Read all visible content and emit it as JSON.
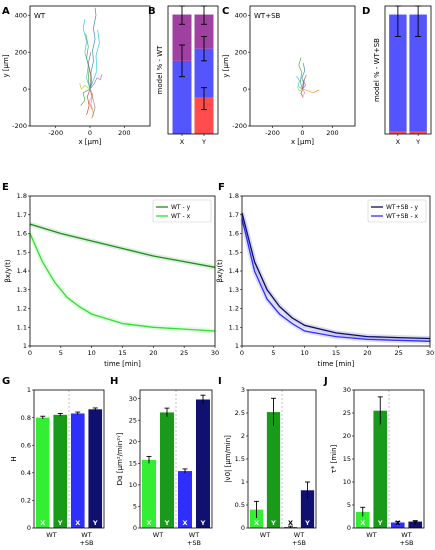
{
  "panels": [
    {
      "letter": "A"
    },
    {
      "letter": "B"
    },
    {
      "letter": "C"
    },
    {
      "letter": "D"
    },
    {
      "letter": "E"
    },
    {
      "letter": "F"
    },
    {
      "letter": "G"
    },
    {
      "letter": "H"
    },
    {
      "letter": "I"
    },
    {
      "letter": "J"
    }
  ],
  "chart_data": [
    {
      "id": "A",
      "type": "scatter",
      "title": "",
      "inset_label": "WT",
      "xlabel": "x [μm]",
      "ylabel": "y [μm]",
      "xlim": [
        -350,
        350
      ],
      "ylim": [
        -200,
        450
      ],
      "xticks": [
        -200,
        0,
        200
      ],
      "yticks": [
        -200,
        0,
        200,
        400
      ],
      "trajectories": [
        {
          "color": "#1f77b4",
          "points": [
            [
              0,
              0
            ],
            [
              10,
              40
            ],
            [
              5,
              90
            ],
            [
              20,
              150
            ],
            [
              15,
              210
            ],
            [
              30,
              270
            ],
            [
              20,
              330
            ],
            [
              35,
              400
            ],
            [
              30,
              440
            ]
          ]
        },
        {
          "color": "#2ca02c",
          "points": [
            [
              0,
              0
            ],
            [
              -10,
              50
            ],
            [
              -5,
              110
            ],
            [
              -20,
              170
            ],
            [
              -10,
              230
            ],
            [
              -25,
              300
            ]
          ]
        },
        {
          "color": "#ff7f0e",
          "points": [
            [
              0,
              0
            ],
            [
              15,
              -30
            ],
            [
              5,
              -80
            ],
            [
              20,
              -130
            ],
            [
              10,
              -160
            ]
          ]
        },
        {
          "color": "#d62728",
          "points": [
            [
              0,
              0
            ],
            [
              -15,
              -40
            ],
            [
              -5,
              -90
            ],
            [
              -20,
              -140
            ]
          ]
        },
        {
          "color": "#9467bd",
          "points": [
            [
              0,
              0
            ],
            [
              25,
              30
            ],
            [
              40,
              60
            ],
            [
              60,
              50
            ],
            [
              70,
              80
            ]
          ]
        },
        {
          "color": "#17becf",
          "points": [
            [
              0,
              0
            ],
            [
              -20,
              60
            ],
            [
              -10,
              130
            ],
            [
              -30,
              200
            ],
            [
              -20,
              260
            ],
            [
              -40,
              330
            ],
            [
              -30,
              380
            ]
          ]
        },
        {
          "color": "#e377c2",
          "points": [
            [
              0,
              0
            ],
            [
              10,
              -40
            ],
            [
              -5,
              -70
            ],
            [
              10,
              -110
            ]
          ]
        },
        {
          "color": "#bcbd22",
          "points": [
            [
              0,
              0
            ],
            [
              -30,
              20
            ],
            [
              -50,
              0
            ],
            [
              -60,
              30
            ]
          ]
        },
        {
          "color": "#8c564b",
          "points": [
            [
              0,
              0
            ],
            [
              5,
              70
            ],
            [
              -10,
              140
            ],
            [
              5,
              200
            ]
          ]
        },
        {
          "color": "#7f7f7f",
          "points": [
            [
              0,
              0
            ],
            [
              20,
              -60
            ],
            [
              30,
              -100
            ],
            [
              15,
              -150
            ]
          ]
        },
        {
          "color": "#17becf",
          "points": [
            [
              0,
              0
            ],
            [
              40,
              100
            ],
            [
              35,
              180
            ],
            [
              55,
              250
            ],
            [
              45,
              320
            ]
          ]
        },
        {
          "color": "#2ca02c",
          "points": [
            [
              0,
              0
            ],
            [
              -40,
              -20
            ],
            [
              -30,
              -60
            ],
            [
              -55,
              -90
            ]
          ]
        }
      ]
    },
    {
      "id": "B",
      "type": "bar",
      "title": "",
      "ylabel": "model % - WT",
      "categories": [
        "X",
        "Y"
      ],
      "ylim": [
        0,
        1.05
      ],
      "yticks": [],
      "series": [
        {
          "color": "#ff4d4d",
          "values": [
            0,
            0.3
          ]
        },
        {
          "color": "#5555ff",
          "values": [
            0.6,
            0.4
          ]
        },
        {
          "color": "#a040a0",
          "values": [
            0.38,
            0.28
          ]
        }
      ],
      "errorbars": [
        {
          "x": 0,
          "y": 0.6,
          "lo": 0.47,
          "hi": 0.73
        },
        {
          "x": 0,
          "y": 0.98,
          "lo": 0.9,
          "hi": 1.06
        },
        {
          "x": 1,
          "y": 0.3,
          "lo": 0.2,
          "hi": 0.38
        },
        {
          "x": 1,
          "y": 0.7,
          "lo": 0.6,
          "hi": 0.8
        },
        {
          "x": 1,
          "y": 0.98,
          "lo": 0.9,
          "hi": 1.06
        }
      ]
    },
    {
      "id": "C",
      "type": "scatter",
      "title": "",
      "inset_label": "WT+SB",
      "xlabel": "x [μm]",
      "ylabel": "y [μm]",
      "xlim": [
        -350,
        350
      ],
      "ylim": [
        -200,
        450
      ],
      "xticks": [
        -200,
        0,
        200
      ],
      "yticks": [
        -200,
        0,
        200,
        400
      ],
      "trajectories": [
        {
          "color": "#1f77b4",
          "points": [
            [
              0,
              0
            ],
            [
              10,
              30
            ],
            [
              -5,
              60
            ],
            [
              15,
              100
            ],
            [
              5,
              140
            ]
          ]
        },
        {
          "color": "#2ca02c",
          "points": [
            [
              0,
              0
            ],
            [
              -15,
              40
            ],
            [
              -5,
              90
            ],
            [
              -25,
              130
            ],
            [
              -10,
              170
            ]
          ]
        },
        {
          "color": "#ff7f0e",
          "points": [
            [
              0,
              0
            ],
            [
              40,
              -10
            ],
            [
              70,
              -20
            ],
            [
              110,
              -5
            ]
          ]
        },
        {
          "color": "#d62728",
          "points": [
            [
              0,
              0
            ],
            [
              -10,
              -25
            ],
            [
              5,
              -45
            ]
          ]
        },
        {
          "color": "#9467bd",
          "points": [
            [
              0,
              0
            ],
            [
              20,
              20
            ],
            [
              10,
              50
            ]
          ]
        },
        {
          "color": "#17becf",
          "points": [
            [
              0,
              0
            ],
            [
              -30,
              15
            ],
            [
              -20,
              45
            ],
            [
              -40,
              70
            ]
          ]
        },
        {
          "color": "#e377c2",
          "points": [
            [
              0,
              0
            ],
            [
              15,
              -20
            ],
            [
              0,
              -40
            ]
          ]
        },
        {
          "color": "#bcbd22",
          "points": [
            [
              0,
              0
            ],
            [
              -20,
              -10
            ],
            [
              -35,
              10
            ]
          ]
        },
        {
          "color": "#8c564b",
          "points": [
            [
              0,
              0
            ],
            [
              5,
              40
            ],
            [
              25,
              75
            ]
          ]
        }
      ]
    },
    {
      "id": "D",
      "type": "bar",
      "title": "",
      "ylabel": "model % - WT+SB",
      "categories": [
        "X",
        "Y"
      ],
      "ylim": [
        0,
        1.05
      ],
      "yticks": [],
      "series": [
        {
          "color": "#ff4d4d",
          "values": [
            0.02,
            0.02
          ]
        },
        {
          "color": "#5555ff",
          "values": [
            0.96,
            0.96
          ]
        }
      ],
      "errorbars": [
        {
          "x": 0,
          "y": 0.98,
          "lo": 0.8,
          "hi": 1.1
        },
        {
          "x": 1,
          "y": 0.98,
          "lo": 0.8,
          "hi": 1.1
        }
      ]
    },
    {
      "id": "E",
      "type": "line",
      "title": "",
      "xlabel": "time [min]",
      "ylabel": "βx/y(t)",
      "xlim": [
        0,
        30
      ],
      "ylim": [
        1.0,
        1.8
      ],
      "xticks": [
        0,
        5,
        10,
        15,
        20,
        25,
        30
      ],
      "yticks": [
        1.0,
        1.1,
        1.2,
        1.3,
        1.4,
        1.5,
        1.6,
        1.7,
        1.8
      ],
      "legend_position": "top-right",
      "series": [
        {
          "name": "WT - y",
          "color": "#1e8c1e",
          "x": [
            0,
            5,
            10,
            15,
            20,
            25,
            30
          ],
          "y": [
            1.65,
            1.6,
            1.56,
            1.52,
            1.48,
            1.45,
            1.42
          ]
        },
        {
          "name": "WT - x",
          "color": "#33dd33",
          "x": [
            0,
            2,
            4,
            6,
            8,
            10,
            15,
            20,
            25,
            30
          ],
          "y": [
            1.6,
            1.45,
            1.34,
            1.26,
            1.21,
            1.17,
            1.12,
            1.1,
            1.09,
            1.08
          ]
        }
      ]
    },
    {
      "id": "F",
      "type": "line",
      "title": "",
      "xlabel": "time [min]",
      "ylabel": "βx/y(t)",
      "xlim": [
        0,
        30
      ],
      "ylim": [
        1.0,
        1.8
      ],
      "xticks": [
        0,
        5,
        10,
        15,
        20,
        25,
        30
      ],
      "yticks": [
        1.0,
        1.1,
        1.2,
        1.3,
        1.4,
        1.5,
        1.6,
        1.7,
        1.8
      ],
      "legend_position": "top-right",
      "series": [
        {
          "name": "WT+SB - y",
          "color": "#0a0a66",
          "x": [
            0,
            2,
            4,
            6,
            8,
            10,
            15,
            20,
            25,
            30
          ],
          "y": [
            1.71,
            1.45,
            1.3,
            1.21,
            1.15,
            1.11,
            1.07,
            1.05,
            1.045,
            1.04
          ]
        },
        {
          "name": "WT+SB - x",
          "color": "#2e2eff",
          "x": [
            0,
            2,
            4,
            6,
            8,
            10,
            15,
            20,
            25,
            30
          ],
          "y": [
            1.68,
            1.4,
            1.25,
            1.17,
            1.12,
            1.08,
            1.05,
            1.035,
            1.03,
            1.025
          ]
        }
      ]
    },
    {
      "id": "G",
      "type": "bar",
      "ylabel": "H",
      "ylim": [
        0,
        1.0
      ],
      "yticks": [
        0.0,
        0.2,
        0.4,
        0.6,
        0.8,
        1.0
      ],
      "group_labels": [
        "WT",
        "WT\n+SB"
      ],
      "bar_labels": [
        "X",
        "Y",
        "X",
        "Y"
      ],
      "colors": [
        "#33ee33",
        "#1a9a1a",
        "#2e2eff",
        "#101070"
      ],
      "values": [
        0.8,
        0.82,
        0.83,
        0.86
      ],
      "errors": [
        0.01,
        0.01,
        0.01,
        0.01
      ]
    },
    {
      "id": "H",
      "type": "bar",
      "ylabel": "Dα [μm²/min²ᵞ]",
      "ylim": [
        0,
        32
      ],
      "yticks": [
        0,
        5,
        10,
        15,
        20,
        25,
        30
      ],
      "group_labels": [
        "WT",
        "WT\n+SB"
      ],
      "bar_labels": [
        "X",
        "Y",
        "X",
        "Y"
      ],
      "colors": [
        "#33ee33",
        "#1a9a1a",
        "#2e2eff",
        "#101070"
      ],
      "values": [
        15.8,
        26.8,
        13.2,
        29.8
      ],
      "errors": [
        0.8,
        1.0,
        0.5,
        1.0
      ]
    },
    {
      "id": "I",
      "type": "bar",
      "ylabel": "|v0| [μm/min]",
      "ylim": [
        0,
        3.0
      ],
      "yticks": [
        0.0,
        0.5,
        1.0,
        1.5,
        2.0,
        2.5,
        3.0
      ],
      "group_labels": [
        "WT",
        "WT\n+SB"
      ],
      "bar_labels": [
        "X",
        "Y",
        "X",
        "Y"
      ],
      "colors": [
        "#33ee33",
        "#1a9a1a",
        "#2e2eff",
        "#101070"
      ],
      "values": [
        0.4,
        2.52,
        0.02,
        0.82
      ],
      "errors": [
        0.18,
        0.3,
        0.02,
        0.18
      ]
    },
    {
      "id": "J",
      "type": "bar",
      "ylabel": "τ* [min]",
      "ylim": [
        0,
        30
      ],
      "yticks": [
        0,
        5,
        10,
        15,
        20,
        25,
        30
      ],
      "group_labels": [
        "WT",
        "WT\n+SB"
      ],
      "bar_labels": [
        "X",
        "Y",
        "X",
        "Y"
      ],
      "colors": [
        "#33ee33",
        "#1a9a1a",
        "#2e2eff",
        "#101070"
      ],
      "values": [
        3.5,
        25.5,
        1.2,
        1.4
      ],
      "errors": [
        1.0,
        3.0,
        0.2,
        0.2
      ]
    }
  ]
}
